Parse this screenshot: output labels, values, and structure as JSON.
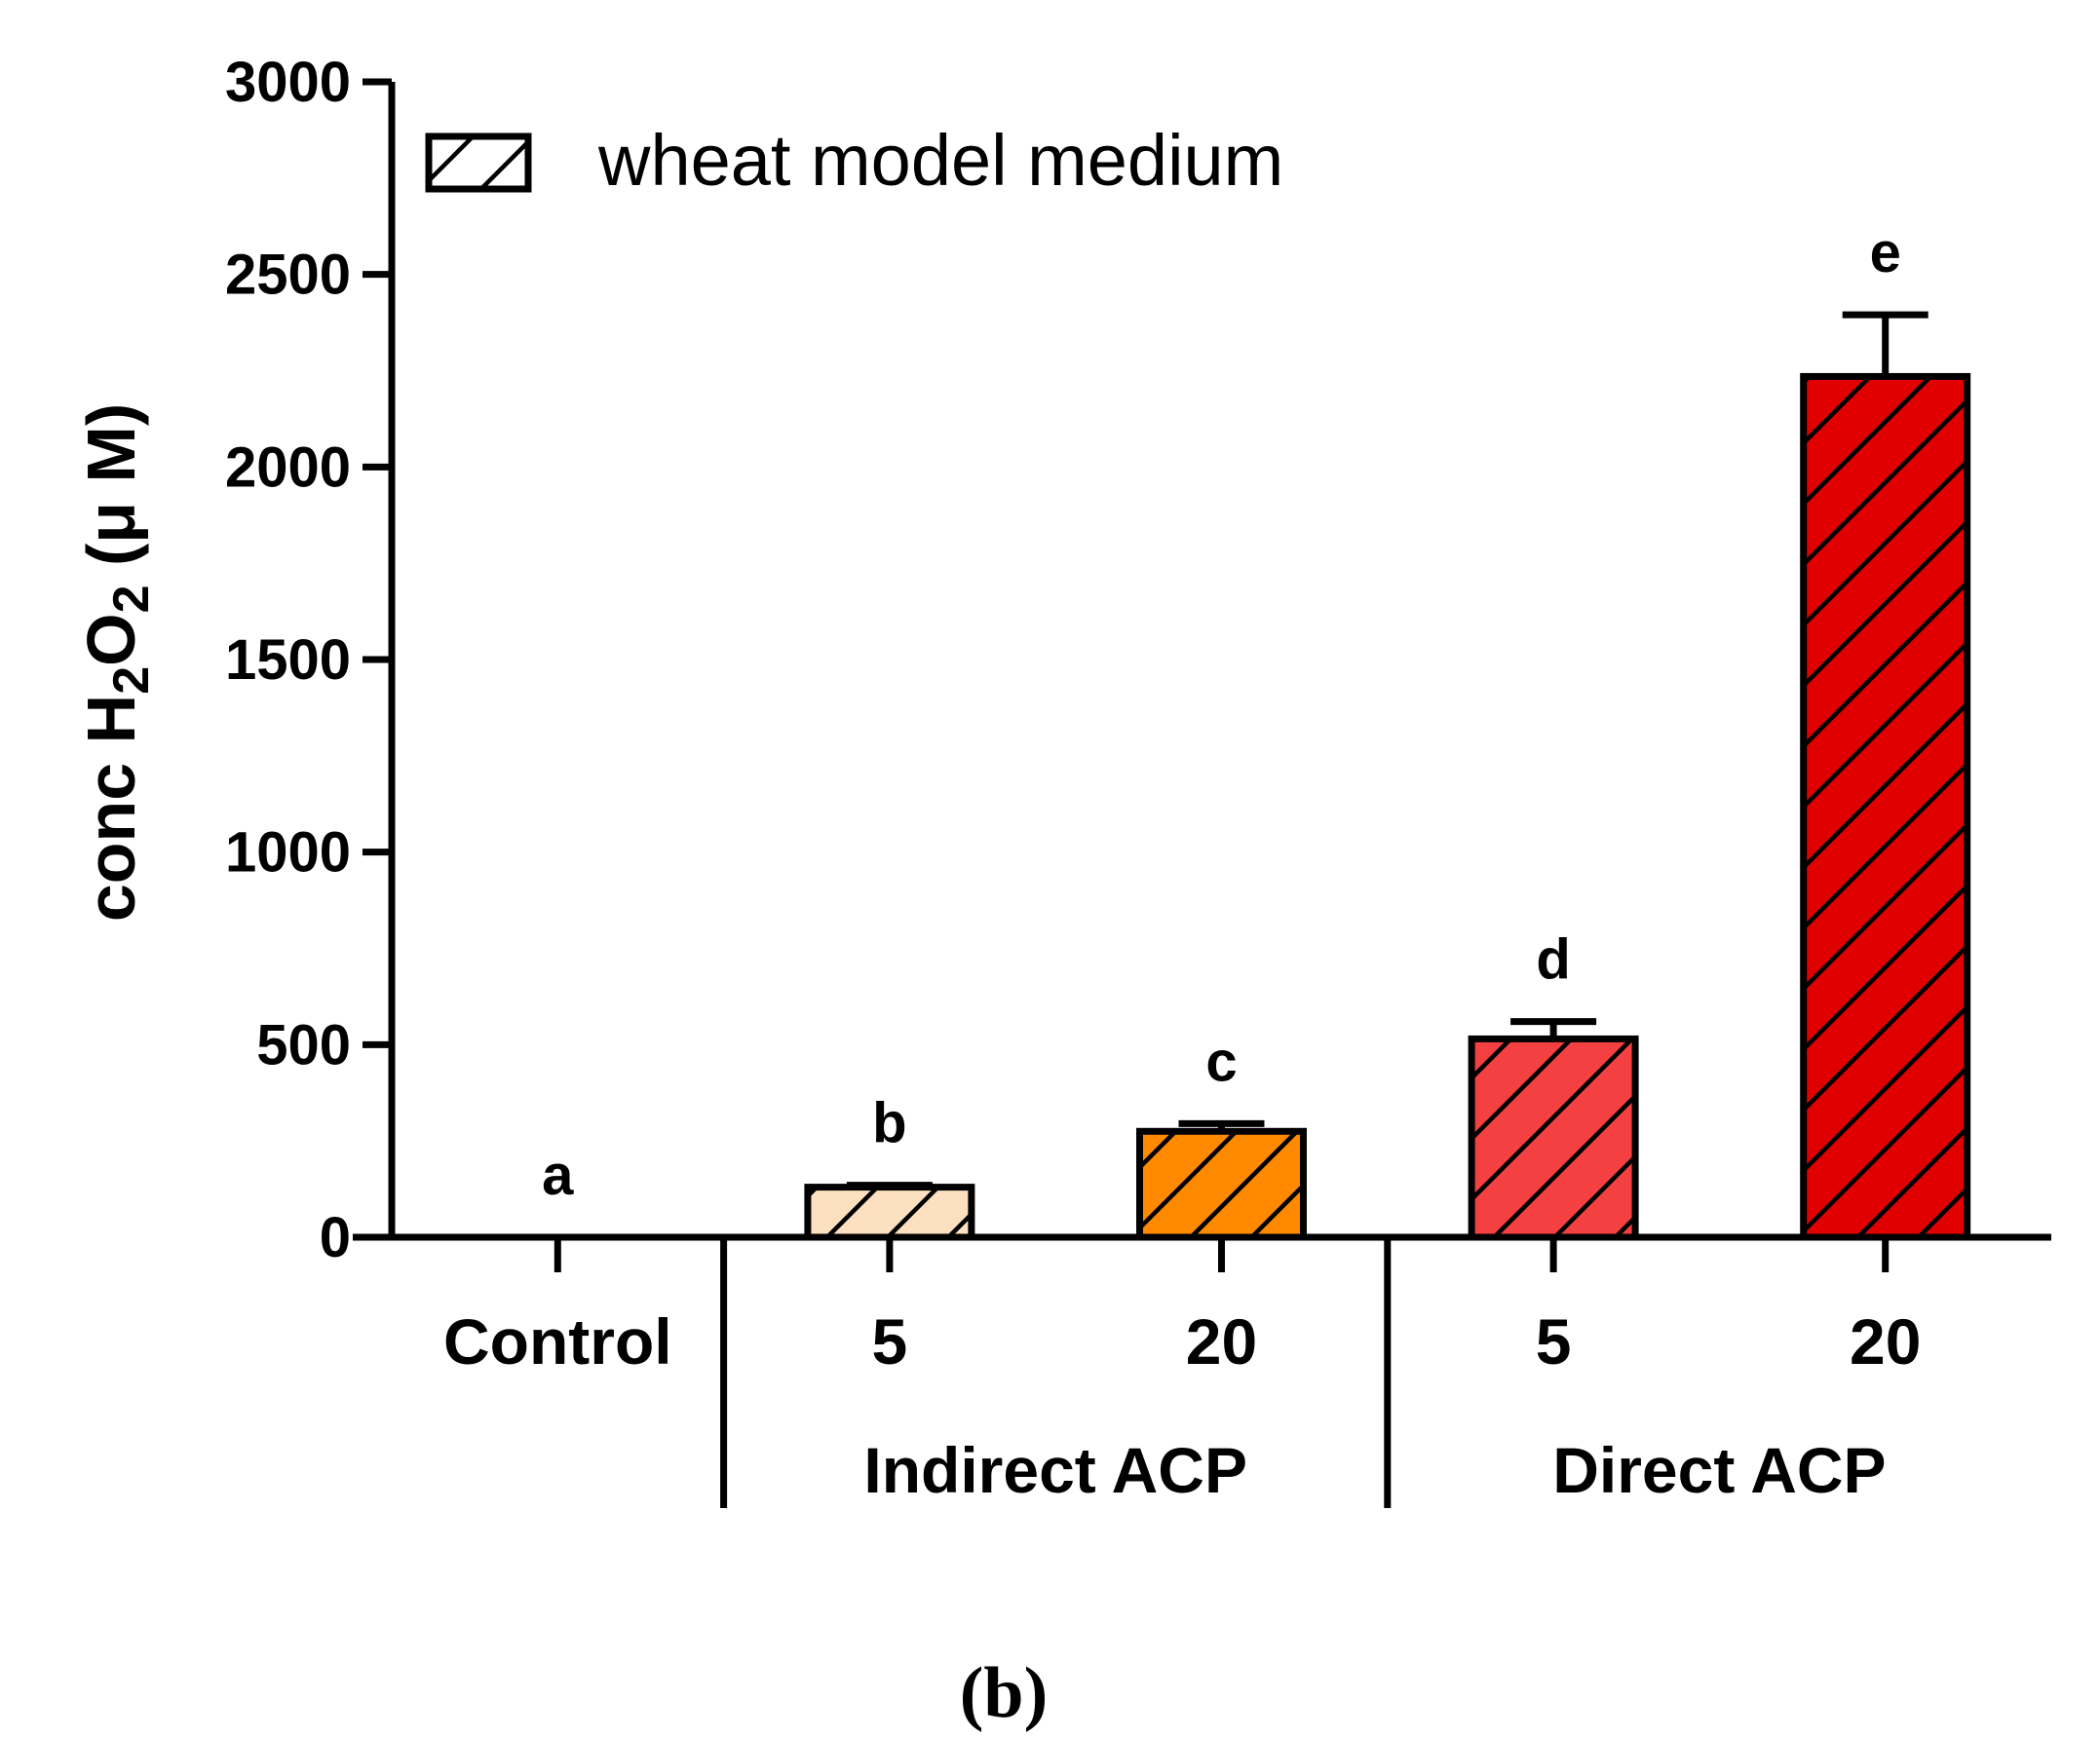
{
  "chart_data": {
    "type": "bar",
    "title": "",
    "xlabel": "",
    "ylabel": "conc H2O2 (μ M)",
    "ylabel_parts": {
      "prefix": "conc H",
      "sub1": "2",
      "mid": "O",
      "sub2": "2",
      "suffix": " (μ M)"
    },
    "ylim": [
      0,
      3000
    ],
    "yticks": [
      0,
      500,
      1000,
      1500,
      2000,
      2500,
      3000
    ],
    "categories": [
      "Control",
      "5",
      "20",
      "5",
      "20"
    ],
    "groups": [
      {
        "label": "Indirect ACP",
        "categories": [
          1,
          2
        ]
      },
      {
        "label": "Direct ACP",
        "categories": [
          3,
          4
        ]
      }
    ],
    "series": [
      {
        "name": "wheat model medium",
        "values": [
          0,
          130,
          275,
          515,
          2235
        ],
        "errors": [
          0,
          5,
          20,
          45,
          160
        ],
        "significance": [
          "a",
          "b",
          "c",
          "d",
          "e"
        ],
        "colors": [
          "#ffffff",
          "#fde0c0",
          "#ff8a00",
          "#f44040",
          "#e00000"
        ]
      }
    ],
    "legend": {
      "position": "top-left",
      "label": "wheat model medium",
      "pattern": "diagonal-hatch"
    },
    "panel_label": "(b)"
  }
}
